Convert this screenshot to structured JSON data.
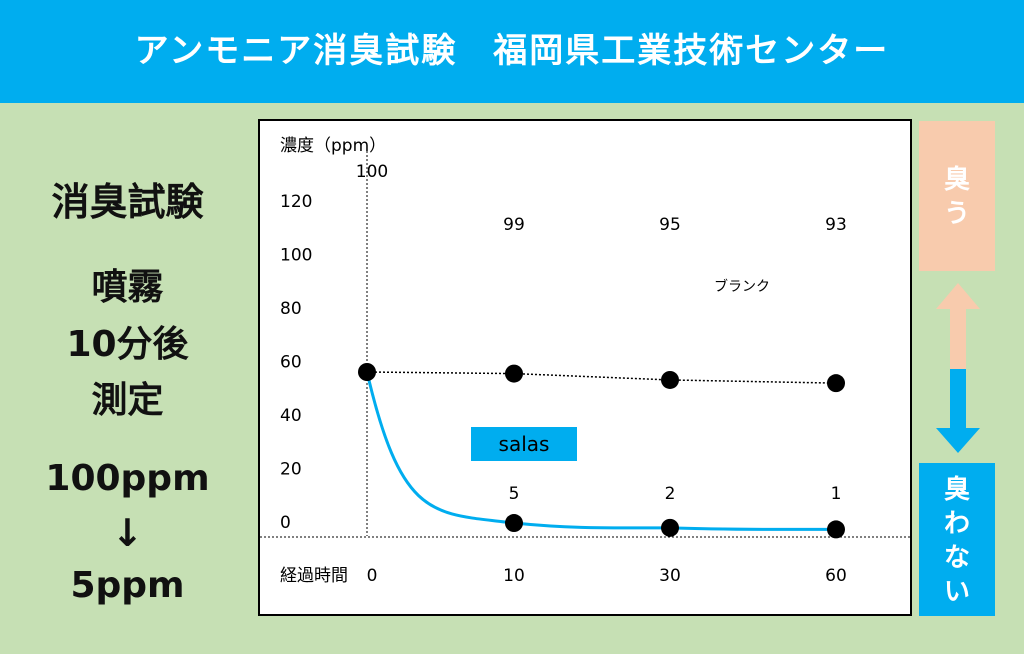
{
  "header": {
    "title": "アンモニア消臭試験　福岡県工業技術センター"
  },
  "left": {
    "line1": "消臭試験",
    "line2": "噴霧",
    "line3": "10分後",
    "line4": "測定",
    "line5": "100ppm",
    "arrow": "↓",
    "line6": "5ppm"
  },
  "side": {
    "smell": [
      "臭",
      "う"
    ],
    "nosmell": [
      "臭",
      "わ",
      "な",
      "い"
    ]
  },
  "colors": {
    "header": "#00adef",
    "background": "#c6e0b4",
    "salas": "#00adef",
    "smell": "#f8cbad",
    "nosmell": "#00adef"
  },
  "chart_data": {
    "type": "line",
    "ylabel": "濃度（ppm）",
    "xlabel": "経過時間",
    "y_ticks": [
      "120",
      "100",
      "80",
      "60",
      "40",
      "20",
      "0"
    ],
    "x_ticks": [
      "0",
      "10",
      "30",
      "60"
    ],
    "series": [
      {
        "name": "ブランク",
        "style": "dotted",
        "color": "#000000",
        "values": [
          100,
          99,
          95,
          93
        ]
      },
      {
        "name": "salas",
        "style": "solid",
        "color": "#00adef",
        "values": [
          100,
          5,
          2,
          1
        ]
      }
    ],
    "data_labels": {
      "blank": [
        "100",
        "99",
        "95",
        "93"
      ],
      "salas": [
        "5",
        "2",
        "1"
      ]
    },
    "grid": false
  }
}
